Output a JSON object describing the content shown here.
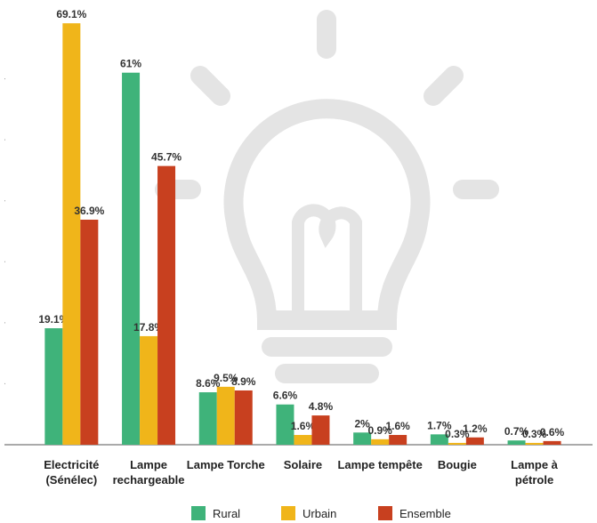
{
  "chart_data": {
    "type": "bar",
    "categories": [
      "Electricité\n(Sénélec)",
      "Lampe\nrechargeable",
      "Lampe Torche",
      "Solaire",
      "Lampe tempête",
      "Bougie",
      "Lampe à\npétrole"
    ],
    "series": [
      {
        "name": "Rural",
        "color": "#3fb37a",
        "values": [
          19.1,
          61,
          8.6,
          6.6,
          2,
          1.7,
          0.7
        ],
        "value_labels": [
          "19.1%",
          "61%",
          "8.6%",
          "6.6%",
          "2%",
          "1.7%",
          "0.7%"
        ]
      },
      {
        "name": "Urbain",
        "color": "#f0b51a",
        "values": [
          69.1,
          17.8,
          9.5,
          1.6,
          0.9,
          0.3,
          0.3
        ],
        "value_labels": [
          "69.1%",
          "17.8%",
          "9.5%",
          "1.6%",
          "0.9%",
          "0.3%",
          "0.3%"
        ]
      },
      {
        "name": "Ensemble",
        "color": "#c8401f",
        "values": [
          36.9,
          45.7,
          8.9,
          4.8,
          1.6,
          1.2,
          0.6
        ],
        "value_labels": [
          "36.9%",
          "45.7%",
          "8.9%",
          "4.8%",
          "1.6%",
          "1.2%",
          "0.6%"
        ]
      }
    ],
    "ylim": [
      0,
      70
    ],
    "yticks": [
      10,
      20,
      30,
      40,
      50,
      60
    ],
    "legend": "bottom"
  }
}
